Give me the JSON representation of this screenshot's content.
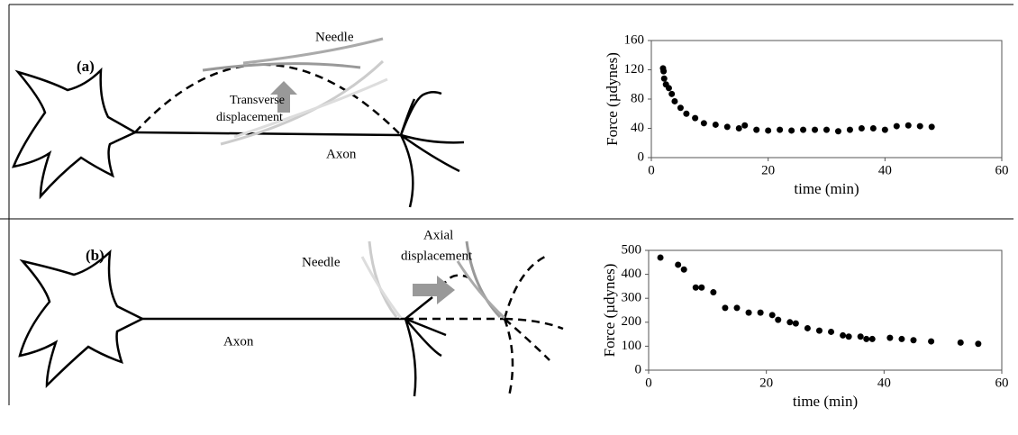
{
  "panels": [
    {
      "label": "(a)",
      "needle": "Needle",
      "displacement": [
        "Transverse",
        "displacement"
      ],
      "axon": "Axon"
    },
    {
      "label": "(b)",
      "needle": "Needle",
      "displacement": [
        "Axial",
        "displacement"
      ],
      "axon": "Axon"
    }
  ],
  "chart_data": [
    {
      "type": "scatter",
      "x_label": "time (min)",
      "y_label": "Force (µdynes)",
      "color": "#000000",
      "x": [
        2.0,
        2.1,
        2.2,
        2.5,
        3,
        3.5,
        4,
        5,
        6,
        7.5,
        9,
        11,
        13,
        15,
        16,
        18,
        20,
        22,
        24,
        26,
        28,
        30,
        32,
        34,
        36,
        38,
        40,
        42,
        44,
        46,
        48
      ],
      "values": [
        122,
        118,
        108,
        100,
        95,
        87,
        77,
        68,
        60,
        54,
        47,
        45,
        42,
        40,
        44,
        38,
        37,
        38,
        37,
        38,
        38,
        38,
        36,
        38,
        40,
        40,
        38,
        43,
        44,
        43,
        42
      ],
      "xlim": [
        0,
        60
      ],
      "xticks": [
        0,
        20,
        40,
        60
      ],
      "ylim": [
        0,
        160
      ],
      "yticks": [
        0,
        40,
        80,
        120,
        160
      ]
    },
    {
      "type": "scatter",
      "x_label": "time (min)",
      "y_label": "Force (µdynes)",
      "color": "#000000",
      "x": [
        2,
        5,
        6,
        8,
        9,
        11,
        13,
        15,
        17,
        19,
        21,
        22,
        24,
        25,
        27,
        29,
        31,
        33,
        34,
        36,
        37,
        38,
        41,
        43,
        45,
        48,
        53,
        56
      ],
      "values": [
        470,
        440,
        420,
        345,
        345,
        325,
        260,
        260,
        240,
        240,
        230,
        210,
        200,
        195,
        175,
        165,
        160,
        145,
        140,
        140,
        130,
        130,
        135,
        130,
        125,
        120,
        115,
        110
      ],
      "xlim": [
        0,
        60
      ],
      "xticks": [
        0,
        20,
        40,
        60
      ],
      "ylim": [
        0,
        500
      ],
      "yticks": [
        0,
        100,
        200,
        300,
        400,
        500
      ]
    }
  ]
}
